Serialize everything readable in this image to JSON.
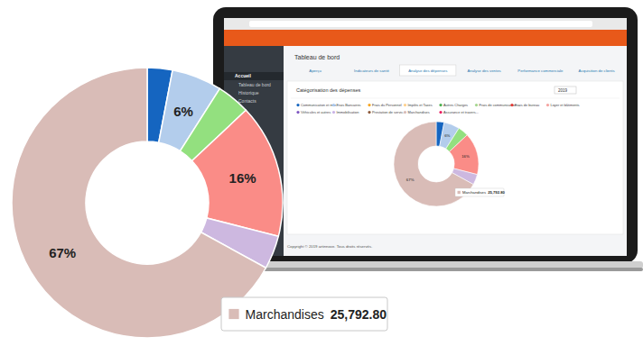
{
  "chart_data": {
    "type": "donut",
    "categories": [
      null,
      null,
      null,
      null,
      null,
      "Marchandises"
    ],
    "values": [
      3,
      6,
      4,
      16,
      4,
      67
    ],
    "value_labels": [
      null,
      "6%",
      null,
      "16%",
      null,
      "67%"
    ],
    "colors": [
      "#1565c0",
      "#b3cdec",
      "#93e07f",
      "#fa8c87",
      "#cdb8e0",
      "#d9bcb7"
    ],
    "data_labels": true,
    "tooltip": {
      "value": 25792.8,
      "label": "25,792.80"
    }
  },
  "screenshot": {
    "sidebar": [
      "Accueil",
      "Tableau de bord",
      "Historique",
      "Contacts"
    ],
    "page_title": "Tableau de bord",
    "tabs": [
      {
        "label": "Aperçu",
        "active": false
      },
      {
        "label": "Indicateurs de santé",
        "active": false
      },
      {
        "label": "Analyse des dépenses",
        "active": true
      },
      {
        "label": "Analyse des ventes",
        "active": false
      },
      {
        "label": "Performance commerciale",
        "active": false
      },
      {
        "label": "Acquisition de clients",
        "active": false
      }
    ],
    "panel_title": "Catégorisation des dépenses",
    "year": "2019",
    "legend": [
      {
        "label": "Communication et mar...",
        "color": "#1565c0"
      },
      {
        "label": "Frais Bancaires",
        "color": "#a9c8ef"
      },
      {
        "label": "Frais du Personnel",
        "color": "#f5a623"
      },
      {
        "label": "Impôts et Taxes",
        "color": "#ffd08a"
      },
      {
        "label": "Autres Charges",
        "color": "#4caf50"
      },
      {
        "label": "Frais de communication...",
        "color": "#a5d68f"
      },
      {
        "label": "Frais de bureau",
        "color": "#e53935"
      },
      {
        "label": "Loyer et bâtiments",
        "color": "#f4a3a0"
      },
      {
        "label": "Véhicules et autres",
        "color": "#7e57c2"
      },
      {
        "label": "Immobilisation",
        "color": "#c9b3e6"
      },
      {
        "label": "Prestation de servic...",
        "color": "#8d5a3b"
      },
      {
        "label": "Marchandises",
        "color": "#d9bcb7"
      },
      {
        "label": "Assurance et travers...",
        "color": "#e91e63"
      }
    ],
    "footer": "Copyright © 2019 artinnove. Tous droits réservés."
  }
}
